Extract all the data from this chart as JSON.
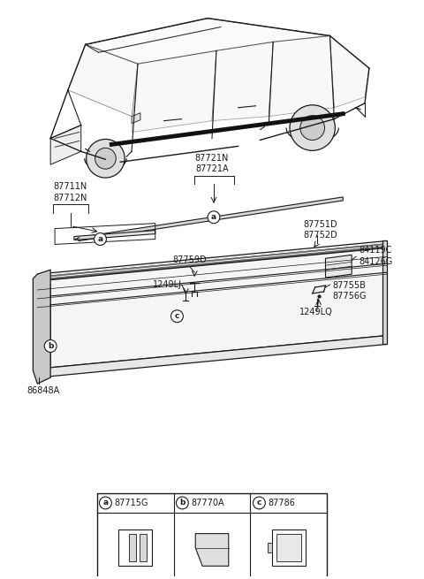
{
  "bg_color": "#ffffff",
  "line_color": "#1a1a1a",
  "gray_fill": "#e8e8e8",
  "dark_fill": "#c0c0c0",
  "white_fill": "#ffffff",
  "labels": {
    "87721N": "87721N\n87721A",
    "87711N": "87711N\n87712N",
    "87751D": "87751D\n87752D",
    "84119C": "84119C\n84126G",
    "87759D": "87759D",
    "1249LJ": "1249LJ",
    "87755B": "87755B\n87756G",
    "1249LQ": "1249LQ",
    "86848A": "86848A"
  },
  "legend": [
    {
      "letter": "a",
      "code": "87715G"
    },
    {
      "letter": "b",
      "code": "87770A"
    },
    {
      "letter": "c",
      "code": "87786"
    }
  ]
}
